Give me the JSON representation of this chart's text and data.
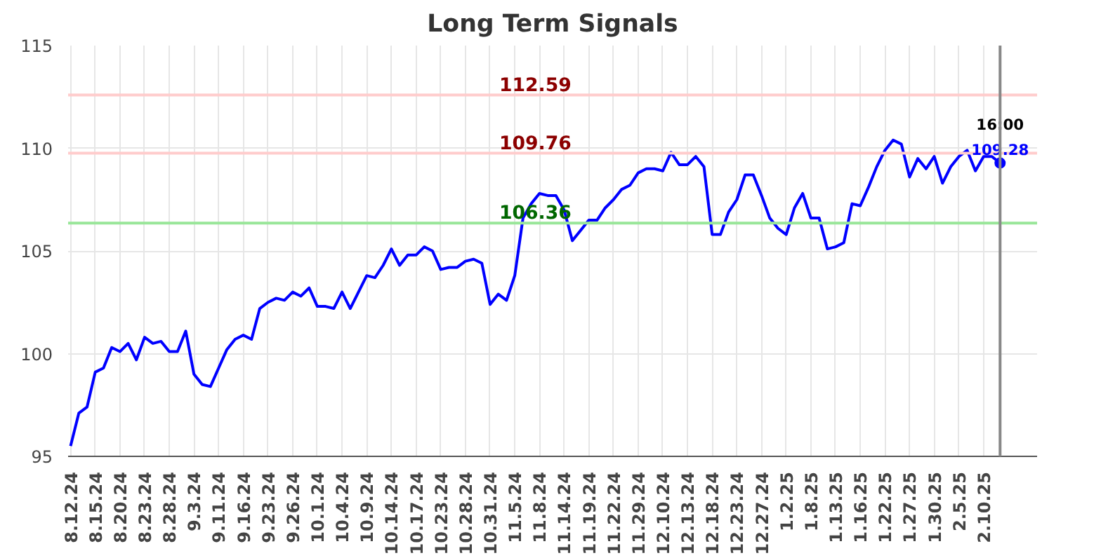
{
  "chart_data": {
    "type": "line",
    "title": "Long Term Signals",
    "categories": [
      "8.12.24",
      null,
      null,
      "8.15.24",
      null,
      null,
      "8.20.24",
      null,
      null,
      "8.23.24",
      null,
      null,
      "8.28.24",
      null,
      null,
      "9.3.24",
      null,
      null,
      "9.11.24",
      null,
      null,
      "9.16.24",
      null,
      null,
      "9.23.24",
      null,
      null,
      "9.26.24",
      null,
      null,
      "10.1.24",
      null,
      null,
      "10.4.24",
      null,
      null,
      "10.9.24",
      null,
      null,
      "10.14.24",
      null,
      null,
      "10.17.24",
      null,
      null,
      "10.23.24",
      null,
      null,
      "10.28.24",
      null,
      null,
      "10.31.24",
      null,
      null,
      "11.5.24",
      null,
      null,
      "11.8.24",
      null,
      null,
      "11.14.24",
      null,
      null,
      "11.19.24",
      null,
      null,
      "11.22.24",
      null,
      null,
      "11.29.24",
      null,
      null,
      "12.10.24",
      null,
      null,
      "12.13.24",
      null,
      null,
      "12.18.24",
      null,
      null,
      "12.23.24",
      null,
      null,
      "12.27.24",
      null,
      null,
      "1.2.25",
      null,
      null,
      "1.8.25",
      null,
      null,
      "1.13.25",
      null,
      null,
      "1.16.25",
      null,
      null,
      "1.22.25",
      null,
      null,
      "1.27.25",
      null,
      null,
      "1.30.25",
      null,
      null,
      "2.5.25",
      null,
      null,
      "2.10.25",
      null,
      null
    ],
    "series": [
      {
        "color": "#0000ff",
        "values": [
          95.5,
          97.1,
          97.4,
          99.1,
          99.3,
          100.3,
          100.1,
          100.5,
          99.7,
          100.8,
          100.5,
          100.6,
          100.1,
          100.1,
          101.1,
          99.0,
          98.5,
          98.4,
          99.3,
          100.2,
          100.7,
          100.9,
          100.7,
          102.2,
          102.5,
          102.7,
          102.6,
          103.0,
          102.8,
          103.2,
          102.3,
          102.3,
          102.2,
          103.0,
          102.2,
          103.0,
          103.8,
          103.7,
          104.3,
          105.1,
          104.3,
          104.8,
          104.8,
          105.2,
          105.0,
          104.1,
          104.2,
          104.2,
          104.5,
          104.6,
          104.4,
          102.4,
          102.9,
          102.6,
          103.8,
          106.6,
          107.3,
          107.8,
          107.7,
          107.7,
          107.0,
          105.5,
          106.0,
          106.5,
          106.5,
          107.1,
          107.5,
          108.0,
          108.2,
          108.8,
          109.0,
          109.0,
          108.9,
          109.8,
          109.2,
          109.2,
          109.6,
          109.1,
          105.8,
          105.8,
          106.9,
          107.5,
          108.7,
          108.7,
          107.7,
          106.6,
          106.1,
          105.8,
          107.1,
          107.8,
          106.6,
          106.6,
          105.1,
          105.2,
          105.4,
          107.3,
          107.2,
          108.1,
          109.1,
          109.9,
          110.4,
          110.2,
          108.6,
          109.5,
          109.0,
          109.6,
          108.3,
          109.1,
          109.6,
          109.9,
          108.9,
          109.6,
          109.6,
          109.28
        ]
      }
    ],
    "ylim": [
      95,
      115
    ],
    "yticks": [
      95,
      100,
      105,
      110,
      115
    ],
    "grid": true,
    "ref_lines": [
      {
        "axis": "y",
        "value": 112.59,
        "label": "112.59",
        "color": "#ffcccc"
      },
      {
        "axis": "y",
        "value": 109.76,
        "label": "109.76",
        "color": "#ffcccc"
      },
      {
        "axis": "y",
        "value": 106.36,
        "label": "106.36",
        "color": "#99e699"
      }
    ],
    "annotations": [
      "16:00",
      {
        "text": "109.28",
        "y": 109.28
      }
    ]
  }
}
